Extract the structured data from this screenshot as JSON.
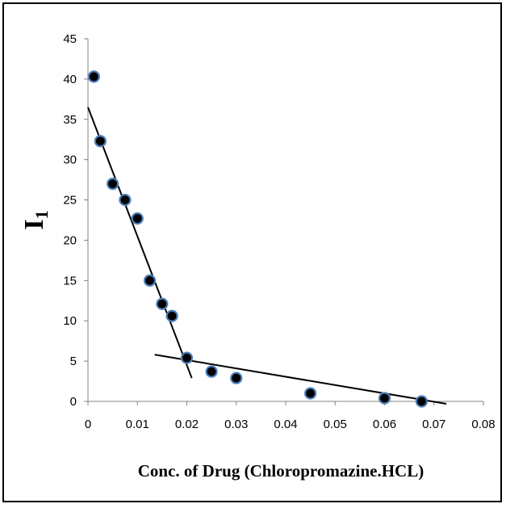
{
  "chart_data": {
    "type": "scatter",
    "title": "",
    "xlabel": "Conc. of Drug (Chloropromazine.HCL)",
    "ylabel": {
      "main": "I",
      "subscript": "1"
    },
    "xlim": [
      0,
      0.08
    ],
    "ylim": [
      0,
      45
    ],
    "x_ticks": [
      0,
      0.01,
      0.02,
      0.03,
      0.04,
      0.05,
      0.06,
      0.07,
      0.08
    ],
    "x_tick_labels": [
      "0",
      "0.01",
      "0.02",
      "0.03",
      "0.04",
      "0.05",
      "0.06",
      "0.07",
      "0.08"
    ],
    "y_ticks": [
      0,
      5,
      10,
      15,
      20,
      25,
      30,
      35,
      40,
      45
    ],
    "y_tick_labels": [
      "0",
      "5",
      "10",
      "15",
      "20",
      "25",
      "30",
      "35",
      "40",
      "45"
    ],
    "grid": false,
    "legend": "none",
    "series": [
      {
        "x": [
          0.0012,
          0.0025,
          0.005,
          0.0075,
          0.01,
          0.0125,
          0.015,
          0.017,
          0.02,
          0.025,
          0.03,
          0.045,
          0.06,
          0.0675
        ],
        "y": [
          40.3,
          32.3,
          27.0,
          25.0,
          22.7,
          15.0,
          12.1,
          10.6,
          5.4,
          3.7,
          2.9,
          1.0,
          0.4,
          0.0
        ]
      }
    ],
    "trend_lines": [
      {
        "x": [
          0,
          0.021
        ],
        "y": [
          36.5,
          2.9
        ]
      },
      {
        "x": [
          0.0135,
          0.0725
        ],
        "y": [
          5.8,
          -0.3
        ]
      }
    ],
    "colors": {
      "marker_fill": "#000000",
      "marker_edge": "#4a7ebb",
      "line": "#000000",
      "axis": "#808080"
    }
  }
}
